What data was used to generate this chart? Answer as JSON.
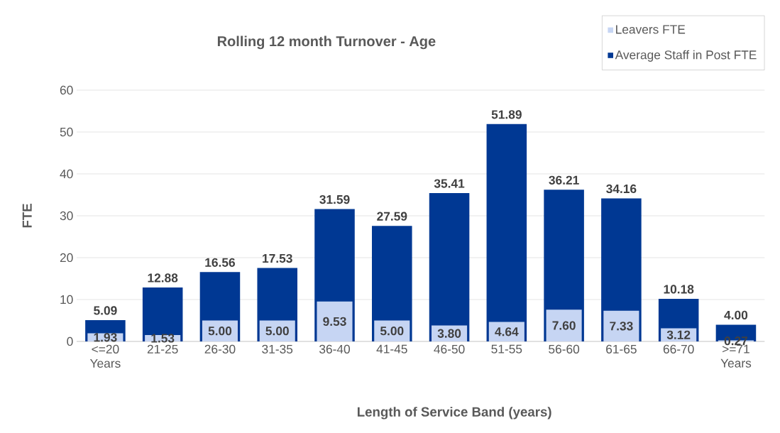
{
  "chart_data": {
    "type": "bar",
    "title": "Rolling 12 month  Turnover - Age",
    "xlabel": "Length of Service Band (years)",
    "ylabel": "FTE",
    "categories": [
      "<=20 Years",
      "21-25",
      "26-30",
      "31-35",
      "36-40",
      "41-45",
      "46-50",
      "51-55",
      "56-60",
      "61-65",
      "66-70",
      ">=71 Years"
    ],
    "series": [
      {
        "name": "Leavers FTE",
        "color": "#c6d5f3",
        "values": [
          1.93,
          1.53,
          5.0,
          5.0,
          9.53,
          5.0,
          3.8,
          4.64,
          7.6,
          7.33,
          3.12,
          0.27
        ],
        "value_labels": [
          "1.93",
          "1.53",
          "5.00",
          "5.00",
          "9.53",
          "5.00",
          "3.80",
          "4.64",
          "7.60",
          "7.33",
          "3.12",
          "0.27"
        ]
      },
      {
        "name": "Average Staff in Post FTE",
        "color": "#003893",
        "values": [
          5.09,
          12.88,
          16.56,
          17.53,
          31.59,
          27.59,
          35.41,
          51.89,
          36.21,
          34.16,
          10.18,
          4.0
        ],
        "value_labels": [
          "5.09",
          "12.88",
          "16.56",
          "17.53",
          "31.59",
          "27.59",
          "35.41",
          "51.89",
          "36.21",
          "34.16",
          "10.18",
          "4.00"
        ]
      }
    ],
    "ylim": [
      0,
      60
    ],
    "yticks": [
      0,
      10,
      20,
      30,
      40,
      50,
      60
    ],
    "grid": "y",
    "legend": "top right"
  }
}
